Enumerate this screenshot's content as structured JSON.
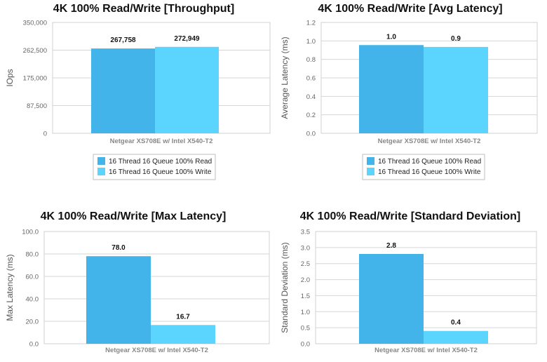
{
  "colors": {
    "read": "#42b4ea",
    "write": "#5bd5fd"
  },
  "chart_data": [
    {
      "type": "bar",
      "title": "4K 100% Read/Write [Throughput]",
      "ylabel": "IOps",
      "categories": [
        "Netgear XS708E w/ Intel X540-T2"
      ],
      "ylim": [
        0,
        350000
      ],
      "yticks": [
        "0",
        "87,500",
        "175,000",
        "262,500",
        "350,000"
      ],
      "series": [
        {
          "name": "16 Thread 16 Queue 100% Read",
          "values": [
            267758
          ],
          "labels": [
            "267,758"
          ]
        },
        {
          "name": "16 Thread 16 Queue 100% Write",
          "values": [
            272949
          ],
          "labels": [
            "272,949"
          ]
        }
      ],
      "legend": "bottom",
      "grid": true
    },
    {
      "type": "bar",
      "title": "4K 100% Read/Write [Avg Latency]",
      "ylabel": "Average Latency (ms)",
      "categories": [
        "Netgear XS708E w/ Intel X540-T2"
      ],
      "ylim": [
        0,
        1.2
      ],
      "yticks": [
        "0.0",
        "0.2",
        "0.4",
        "0.6",
        "0.8",
        "1.0",
        "1.2"
      ],
      "series": [
        {
          "name": "16 Thread 16 Queue 100% Read",
          "values": [
            0.955
          ],
          "labels": [
            "1.0"
          ]
        },
        {
          "name": "16 Thread 16 Queue 100% Write",
          "values": [
            0.935
          ],
          "labels": [
            "0.9"
          ]
        }
      ],
      "legend": "bottom",
      "grid": true
    },
    {
      "type": "bar",
      "title": "4K 100% Read/Write [Max Latency]",
      "ylabel": "Max Latency (ms)",
      "categories": [
        "Netgear XS708E w/ Intel X540-T2"
      ],
      "ylim": [
        0,
        100
      ],
      "yticks": [
        "0.0",
        "20.0",
        "40.0",
        "60.0",
        "80.0",
        "100.0"
      ],
      "series": [
        {
          "values": [
            78.0
          ],
          "labels": [
            "78.0"
          ]
        },
        {
          "values": [
            16.7
          ],
          "labels": [
            "16.7"
          ]
        }
      ],
      "grid": true
    },
    {
      "type": "bar",
      "title": "4K 100% Read/Write [Standard Deviation]",
      "ylabel": "Standard Deviation (ms)",
      "categories": [
        "Netgear XS708E w/ Intel X540-T2"
      ],
      "ylim": [
        0,
        3.5
      ],
      "yticks": [
        "0.0",
        "0.5",
        "1.0",
        "1.5",
        "2.0",
        "2.5",
        "3.0",
        "3.5"
      ],
      "series": [
        {
          "values": [
            2.8
          ],
          "labels": [
            "2.8"
          ]
        },
        {
          "values": [
            0.4
          ],
          "labels": [
            "0.4"
          ]
        }
      ],
      "grid": true
    }
  ]
}
